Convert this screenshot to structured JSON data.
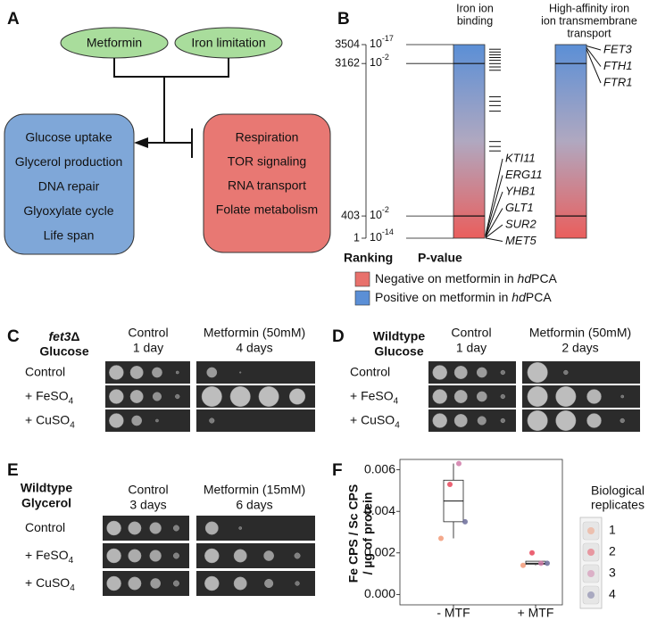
{
  "panel_a": {
    "label": "A",
    "inputs": [
      "Metformin",
      "Iron limitation"
    ],
    "promoted": [
      "Glucose uptake",
      "Glycerol production",
      "DNA repair",
      "Glyoxylate cycle",
      "Life span"
    ],
    "inhibited": [
      "Respiration",
      "TOR signaling",
      "RNA transport",
      "Folate metabolism"
    ]
  },
  "panel_b": {
    "label": "B",
    "columns": [
      [
        "Iron ion",
        "binding"
      ],
      [
        "High-affinity iron",
        "ion transmembrane",
        "transport"
      ]
    ],
    "ranking_lim": [
      1,
      3504
    ],
    "ranking_ticks": [
      3504,
      3162,
      403,
      1
    ],
    "pvalue_labels": [
      {
        "base": "10",
        "exp": "-17"
      },
      {
        "base": "10",
        "exp": "-2"
      },
      {
        "base": "10",
        "exp": "-2"
      },
      {
        "base": "10",
        "exp": "-14"
      }
    ],
    "iron_binding_hits": [
      3420,
      3370,
      3320,
      3270,
      3220,
      3160,
      3100,
      3040,
      2560,
      2480,
      2400,
      2300,
      1750,
      1660,
      1580
    ],
    "iron_binding_genes": [
      {
        "name": "KTI11",
        "rank": 60
      },
      {
        "name": "ERG11",
        "rank": 45
      },
      {
        "name": "YHB1",
        "rank": 32
      },
      {
        "name": "GLT1",
        "rank": 20
      },
      {
        "name": "SUR2",
        "rank": 10
      },
      {
        "name": "MET5",
        "rank": 3
      }
    ],
    "transport_genes": [
      {
        "name": "FET3",
        "rank": 3480
      },
      {
        "name": "FTH1",
        "rank": 3450
      },
      {
        "name": "FTR1",
        "rank": 3420
      }
    ],
    "axis_labels": [
      "Ranking",
      "P-value"
    ],
    "legend": [
      {
        "pre": "Negative on metformin in ",
        "italic": "hd",
        "post": "PCA",
        "color": "#e8716c"
      },
      {
        "pre": "Positive on metformin in ",
        "italic": "hd",
        "post": "PCA",
        "color": "#5b8fd6"
      }
    ]
  },
  "panel_c": {
    "label": "C",
    "strain_italic": "fet3",
    "strain_suffix": "Δ",
    "medium": "Glucose",
    "conditions": [
      [
        "Control",
        "1 day"
      ],
      [
        "Metformin (50mM)",
        "4 days"
      ]
    ],
    "rows": [
      {
        "text": "Control"
      },
      {
        "text": "+ FeSO",
        "sub": "4"
      },
      {
        "text": "+ CuSO",
        "sub": "4"
      }
    ]
  },
  "panel_d": {
    "label": "D",
    "strain": "Wildtype",
    "medium": "Glucose",
    "conditions": [
      [
        "Control",
        "1 day"
      ],
      [
        "Metformin (50mM)",
        "2 days"
      ]
    ],
    "rows": [
      {
        "text": "Control"
      },
      {
        "text": "+ FeSO",
        "sub": "4"
      },
      {
        "text": "+ CuSO",
        "sub": "4"
      }
    ]
  },
  "panel_e": {
    "label": "E",
    "strain": "Wildtype",
    "medium": "Glycerol",
    "conditions": [
      [
        "Control",
        "3 days"
      ],
      [
        "Metformin (15mM)",
        "6 days"
      ]
    ],
    "rows": [
      {
        "text": "Control"
      },
      {
        "text": "+ FeSO",
        "sub": "4"
      },
      {
        "text": "+ CuSO",
        "sub": "4"
      }
    ]
  },
  "panel_f": {
    "label": "F",
    "type": "box",
    "y_label": [
      "Fe CPS / Sc CPS",
      "/ µg of protein"
    ],
    "ylim": [
      -0.0005,
      0.0065
    ],
    "yticks": [
      {
        "value": 0,
        "label": "0.000"
      },
      0.002,
      0.004,
      0.006
    ],
    "categories": [
      "- MTF",
      "+ MTF"
    ],
    "boxes": [
      {
        "low": 0.0027,
        "q1": 0.0035,
        "median": 0.0045,
        "q3": 0.0055,
        "high": 0.0063
      },
      {
        "low": 0.0014,
        "q1": 0.00145,
        "median": 0.0015,
        "q3": 0.0016,
        "high": 0.0016
      }
    ],
    "legend_title": [
      "Biological",
      "replicates"
    ],
    "series": [
      {
        "name": "1",
        "color": "#f29a78",
        "values": [
          0.0027,
          0.0014
        ]
      },
      {
        "name": "2",
        "color": "#e8475a",
        "values": [
          0.0053,
          0.002
        ]
      },
      {
        "name": "3",
        "color": "#d07aa8",
        "values": [
          0.0063,
          0.0015
        ]
      },
      {
        "name": "4",
        "color": "#6b6c9a",
        "values": [
          0.0035,
          0.0015
        ]
      }
    ]
  }
}
